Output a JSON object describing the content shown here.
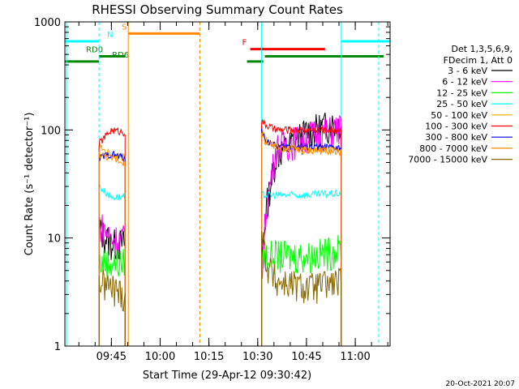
{
  "chart_data": {
    "type": "line",
    "title": "RHESSI Observing Summary Count Rates",
    "xlabel": "Start Time (29-Apr-12 09:30:42)",
    "ylabel": "Count Rate (s⁻¹ detector⁻¹)",
    "yscale": "log",
    "ylim": [
      1,
      1000
    ],
    "xlim_minutes": [
      0,
      100
    ],
    "x_start": "09:30:42",
    "x_ticks": [
      {
        "label": "09:45",
        "t": 14.3
      },
      {
        "label": "10:00",
        "t": 29.3
      },
      {
        "label": "10:15",
        "t": 44.3
      },
      {
        "label": "10:30",
        "t": 59.3
      },
      {
        "label": "10:45",
        "t": 74.3
      },
      {
        "label": "11:00",
        "t": 89.3
      }
    ],
    "y_ticks": [
      {
        "label": "1",
        "v": 1
      },
      {
        "label": "10",
        "v": 10
      },
      {
        "label": "100",
        "v": 100
      },
      {
        "label": "1000",
        "v": 1000
      }
    ],
    "grid": false,
    "legend_position": "right",
    "legend_header": [
      "Det 1,3,5,6,9,",
      "FDecim 1, Att 0"
    ],
    "series": [
      {
        "name": "3 - 6 keV",
        "color": "#000000",
        "seg1": [
          12,
          9,
          9
        ],
        "seg2": [
          6,
          20,
          60,
          100,
          120
        ]
      },
      {
        "name": "6 - 12 keV",
        "color": "#ff00ff",
        "seg1": [
          14,
          10,
          10
        ],
        "seg2": [
          5,
          20,
          70,
          90,
          105
        ]
      },
      {
        "name": "12 - 25 keV",
        "color": "#00ff00",
        "seg1": [
          6,
          6,
          6
        ],
        "seg2": [
          6,
          7,
          7,
          7,
          8
        ]
      },
      {
        "name": "25 - 50 keV",
        "color": "#00ffff",
        "seg1": [
          30,
          24,
          24
        ],
        "seg2": [
          25,
          25,
          25,
          25,
          26
        ]
      },
      {
        "name": "50 - 100 keV",
        "color": "#ffaa00",
        "seg1": [
          70,
          60,
          55
        ],
        "seg2": [
          110,
          80,
          70,
          65,
          65
        ]
      },
      {
        "name": "100 - 300 keV",
        "color": "#ff0000",
        "seg1": [
          75,
          100,
          95
        ],
        "seg2": [
          120,
          110,
          100,
          100,
          100
        ]
      },
      {
        "name": "300 - 800 keV",
        "color": "#0000ff",
        "seg1": [
          55,
          60,
          55
        ],
        "seg2": [
          95,
          80,
          70,
          70,
          68
        ]
      },
      {
        "name": "800 - 7000 keV",
        "color": "#ff8800",
        "seg1": [
          60,
          55,
          50
        ],
        "seg2": [
          90,
          75,
          68,
          65,
          63
        ]
      },
      {
        "name": "7000 - 15000 keV",
        "color": "#886600",
        "seg1": [
          4,
          3.5,
          3
        ],
        "seg2": [
          12,
          6,
          4,
          3.5,
          4
        ]
      }
    ],
    "segment_times": {
      "seg1": [
        10.5,
        14.3,
        18.5
      ],
      "seg2": [
        60.5,
        62,
        65,
        75,
        85
      ]
    },
    "flags": [
      {
        "label": "N",
        "color": "#00ffff",
        "level": 660
      },
      {
        "label": "S",
        "color": "#ff8800",
        "level": 780
      },
      {
        "label": "F",
        "color": "#ff0000",
        "level": 560
      },
      {
        "label": "RD0",
        "color": "#008800",
        "level": 480
      },
      {
        "label": "RD6",
        "color": "#008800",
        "level": 430
      }
    ],
    "footer": "20-Oct-2021 20:07"
  }
}
